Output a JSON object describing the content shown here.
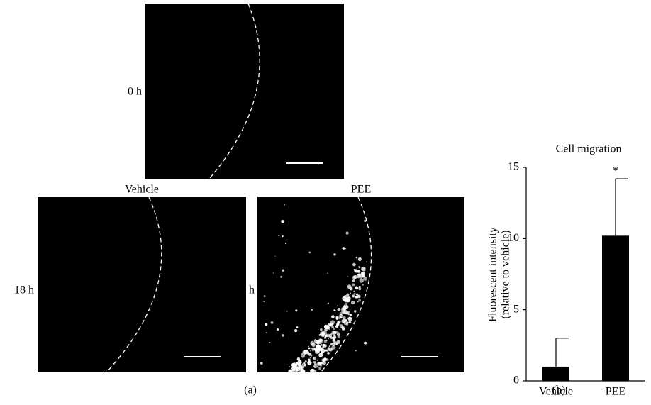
{
  "figure": {
    "panel_a": {
      "label": "(a)",
      "row_labels": [
        "0 h",
        "18 h",
        "18 h"
      ],
      "column_labels": [
        "Vehicle",
        "PEE"
      ]
    },
    "panel_b": {
      "label": "(b)"
    }
  },
  "chart_data": {
    "type": "bar",
    "title": "Cell migration",
    "y_label": [
      "Fluorescent intensity",
      "(relative to vehicle)"
    ],
    "categories": [
      "Vehicle",
      "PEE"
    ],
    "values": [
      1,
      10.2
    ],
    "errors": [
      2,
      4.0
    ],
    "color": "#000000",
    "annotations": [
      {
        "category": "PEE",
        "text": "*"
      }
    ],
    "ylim": [
      0,
      15
    ],
    "yticks": [
      0,
      5,
      10,
      15
    ]
  }
}
